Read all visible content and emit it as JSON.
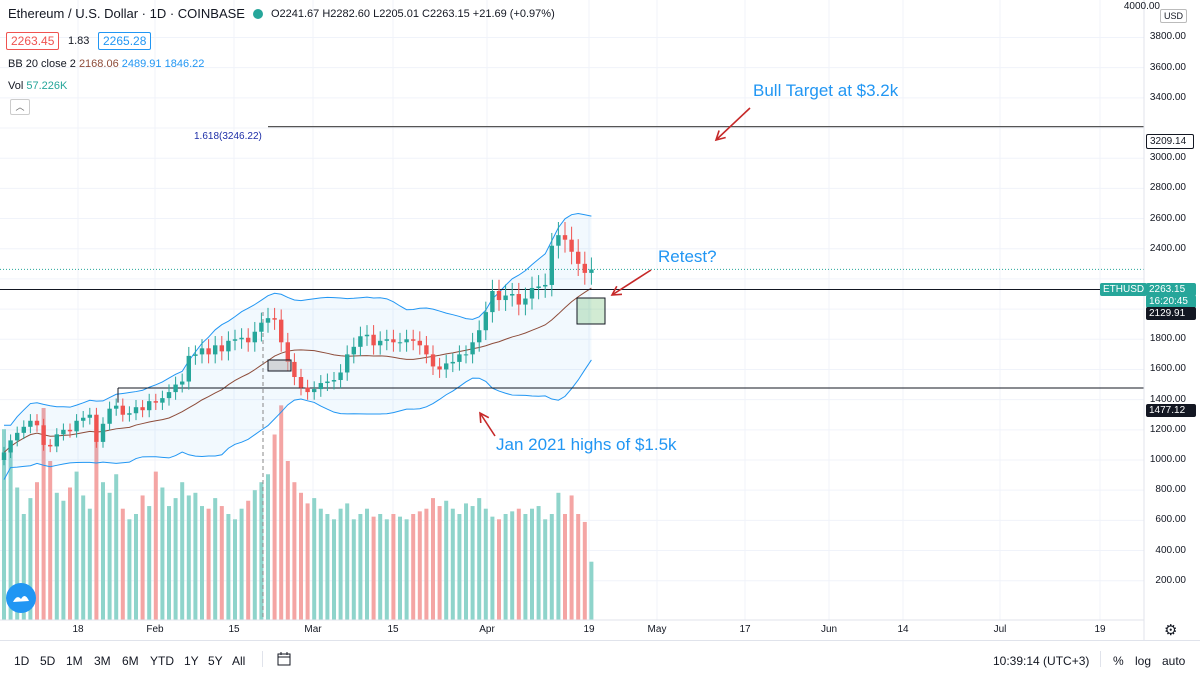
{
  "header": {
    "symbol": "Ethereum / U.S. Dollar · 1D · COINBASE",
    "ohlc": "O2241.67  H2282.60  L2205.01  C2263.15  +21.69 (+0.97%)",
    "bid": "2263.45",
    "spread": "1.83",
    "ask": "2265.28",
    "bb_label": "BB 20 close 2",
    "bb_mid": "2168.06",
    "bb_up": "2489.91",
    "bb_low": "1846.22",
    "vol_label": "Vol",
    "vol_value": "57.226K"
  },
  "axis": {
    "currency": "USD",
    "y_ticks": [
      "4000.00",
      "3800.00",
      "3600.00",
      "3400.00",
      "3209.14",
      "3000.00",
      "2800.00",
      "2600.00",
      "2400.00",
      "2263.15",
      "2129.91",
      "2000.00",
      "1800.00",
      "1600.00",
      "1477.12",
      "1400.00",
      "1200.00",
      "1000.00",
      "800.00",
      "600.00",
      "400.00",
      "200.00"
    ],
    "x_ticks": [
      "18",
      "Feb",
      "15",
      "Mar",
      "15",
      "Apr",
      "19",
      "May",
      "17",
      "Jun",
      "14",
      "Jul",
      "19"
    ]
  },
  "tags": {
    "symbol_tag": "ETHUSD",
    "price_tag": "2263.15",
    "countdown": "16:20:45",
    "level1": "2129.91",
    "level2": "1477.12",
    "level3": "3209.14"
  },
  "annotations": {
    "bull": "Bull Target at $3.2k",
    "retest": "Retest?",
    "jan": "Jan 2021 highs of $1.5k",
    "fib": "1.618(3246.22)"
  },
  "bottom": {
    "timeframes": [
      "1D",
      "5D",
      "1M",
      "3M",
      "6M",
      "YTD",
      "1Y",
      "5Y",
      "All"
    ],
    "clock": "10:39:14 (UTC+3)",
    "percent": "%",
    "log": "log",
    "auto": "auto"
  },
  "colors": {
    "up": "#26a69a",
    "down": "#ef5350",
    "band": "#2196f3",
    "accent": "#2196f3"
  },
  "chart_data": {
    "type": "candlestick",
    "title": "Ethereum / U.S. Dollar",
    "ylim": [
      140,
      4080
    ],
    "levels": [
      3209.14,
      2129.91,
      1477.12
    ],
    "closes": [
      1050,
      1130,
      1180,
      1220,
      1260,
      1230,
      1100,
      1090,
      1170,
      1200,
      1190,
      1260,
      1280,
      1300,
      1120,
      1240,
      1340,
      1360,
      1300,
      1310,
      1350,
      1330,
      1390,
      1380,
      1410,
      1450,
      1500,
      1520,
      1690,
      1700,
      1740,
      1700,
      1760,
      1720,
      1790,
      1800,
      1810,
      1780,
      1850,
      1910,
      1940,
      1930,
      1780,
      1650,
      1550,
      1480,
      1450,
      1470,
      1510,
      1520,
      1530,
      1580,
      1700,
      1750,
      1820,
      1830,
      1760,
      1790,
      1800,
      1780,
      1780,
      1800,
      1790,
      1760,
      1700,
      1620,
      1600,
      1640,
      1650,
      1700,
      1700,
      1780,
      1860,
      1980,
      2120,
      2060,
      2090,
      2100,
      2030,
      2070,
      2140,
      2150,
      2160,
      2420,
      2490,
      2460,
      2380,
      2300,
      2240,
      2263
    ],
    "volumes": [
      720,
      650,
      500,
      400,
      460,
      520,
      800,
      600,
      480,
      450,
      500,
      560,
      470,
      420,
      700,
      520,
      480,
      550,
      420,
      380,
      400,
      470,
      430,
      560,
      500,
      430,
      460,
      520,
      470,
      480,
      430,
      420,
      460,
      430,
      400,
      380,
      420,
      450,
      490,
      520,
      550,
      700,
      810,
      600,
      520,
      480,
      440,
      460,
      420,
      400,
      380,
      420,
      440,
      380,
      400,
      420,
      390,
      400,
      380,
      400,
      390,
      380,
      400,
      410,
      420,
      460,
      430,
      450,
      420,
      400,
      440,
      430,
      460,
      420,
      390,
      380,
      400,
      410,
      420,
      400,
      420,
      430,
      380,
      400,
      480,
      400,
      470,
      400,
      370,
      220
    ]
  }
}
